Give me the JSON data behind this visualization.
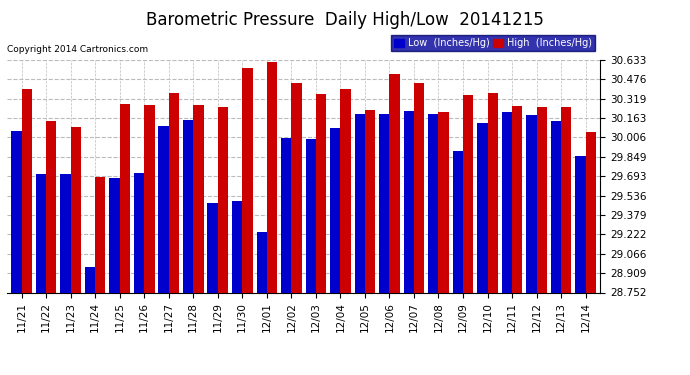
{
  "title": "Barometric Pressure  Daily High/Low  20141215",
  "copyright": "Copyright 2014 Cartronics.com",
  "categories": [
    "11/21",
    "11/22",
    "11/23",
    "11/24",
    "11/25",
    "11/26",
    "11/27",
    "11/28",
    "11/29",
    "11/30",
    "12/01",
    "12/02",
    "12/03",
    "12/04",
    "12/05",
    "12/06",
    "12/07",
    "12/08",
    "12/09",
    "12/10",
    "12/11",
    "12/12",
    "12/13",
    "12/14"
  ],
  "low_values": [
    30.06,
    29.71,
    29.71,
    28.96,
    29.68,
    29.72,
    30.1,
    30.15,
    29.48,
    29.49,
    29.24,
    30.0,
    29.99,
    30.08,
    30.2,
    30.2,
    30.22,
    30.2,
    29.9,
    30.12,
    30.21,
    30.19,
    30.14,
    29.86
  ],
  "high_values": [
    30.4,
    30.14,
    30.09,
    29.69,
    30.28,
    30.27,
    30.37,
    30.27,
    30.25,
    30.57,
    30.62,
    30.45,
    30.36,
    30.4,
    30.23,
    30.52,
    30.45,
    30.21,
    30.35,
    30.37,
    30.26,
    30.25,
    30.25,
    30.05
  ],
  "ymin": 28.752,
  "ymax": 30.633,
  "yticks": [
    28.752,
    28.909,
    29.066,
    29.222,
    29.379,
    29.536,
    29.693,
    29.849,
    30.006,
    30.163,
    30.319,
    30.476,
    30.633
  ],
  "low_color": "#0000cc",
  "high_color": "#cc0000",
  "bg_color": "#ffffff",
  "plot_bg_color": "#ffffff",
  "grid_color": "#bbbbbb",
  "title_fontsize": 12,
  "tick_fontsize": 7.5,
  "bar_width": 0.42
}
